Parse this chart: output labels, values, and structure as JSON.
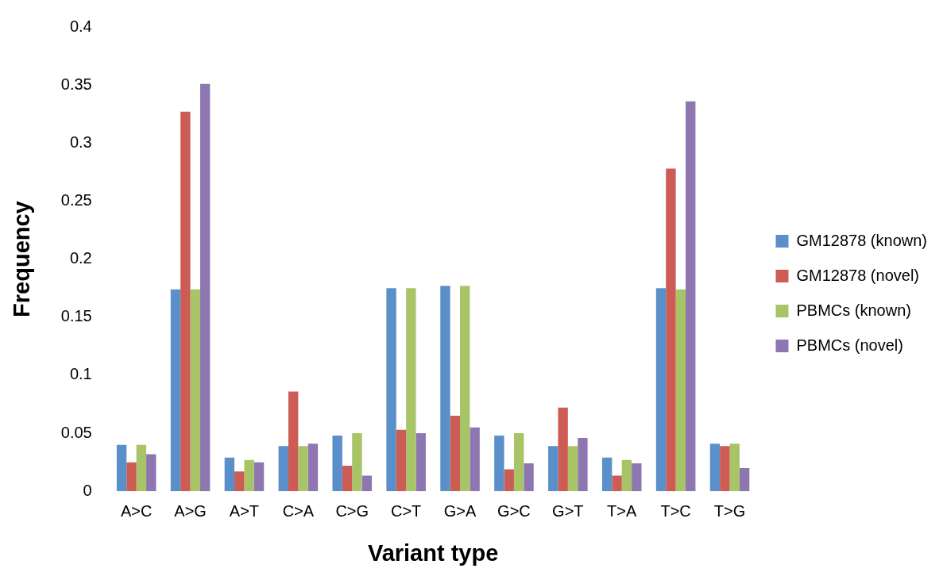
{
  "chart_data": {
    "type": "bar",
    "xlabel": "Variant type",
    "ylabel": "Frequency",
    "categories": [
      "A>C",
      "A>G",
      "A>T",
      "C>A",
      "C>G",
      "C>T",
      "G>A",
      "G>C",
      "G>T",
      "T>A",
      "T>C",
      "T>G"
    ],
    "series": [
      {
        "name": "GM12878 (known)",
        "color": "#5b8fc9",
        "values": [
          0.04,
          0.174,
          0.029,
          0.039,
          0.048,
          0.175,
          0.177,
          0.048,
          0.039,
          0.029,
          0.175,
          0.041
        ]
      },
      {
        "name": "GM12878 (novel)",
        "color": "#cd5c55",
        "values": [
          0.025,
          0.327,
          0.017,
          0.086,
          0.022,
          0.053,
          0.065,
          0.019,
          0.072,
          0.0135,
          0.278,
          0.039
        ]
      },
      {
        "name": "PBMCs (known)",
        "color": "#a7c467",
        "values": [
          0.04,
          0.174,
          0.027,
          0.039,
          0.05,
          0.175,
          0.177,
          0.05,
          0.039,
          0.027,
          0.174,
          0.041
        ]
      },
      {
        "name": "PBMCs (novel)",
        "color": "#8e76b0",
        "values": [
          0.032,
          0.351,
          0.025,
          0.041,
          0.0135,
          0.05,
          0.055,
          0.024,
          0.046,
          0.024,
          0.336,
          0.02
        ]
      }
    ],
    "ylim": [
      0,
      0.4
    ],
    "yticks": [
      0,
      0.05,
      0.1,
      0.15,
      0.2,
      0.25,
      0.3,
      0.35,
      0.4
    ],
    "grid": false,
    "legend": "right"
  }
}
